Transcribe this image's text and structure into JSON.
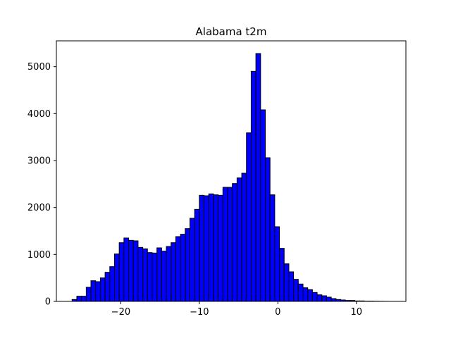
{
  "chart_data": {
    "type": "bar",
    "title": "Alabama t2m",
    "xlabel": "",
    "ylabel": "",
    "xlim": [
      -28.2,
      16.3
    ],
    "ylim": [
      0,
      5550
    ],
    "xticks": [
      -20,
      -10,
      0,
      10
    ],
    "xtick_labels": [
      "−20",
      "−10",
      "0",
      "10"
    ],
    "yticks": [
      0,
      1000,
      2000,
      3000,
      4000,
      5000
    ],
    "ytick_labels": [
      "0",
      "1000",
      "2000",
      "3000",
      "4000",
      "5000"
    ],
    "grid": false,
    "bar_color": "#0000ff",
    "edge_color": "#000000",
    "bin_width": 0.6,
    "bin_starts": [
      -26.2,
      -25.6,
      -25.0,
      -24.4,
      -23.8,
      -23.2,
      -22.6,
      -22.0,
      -21.4,
      -20.8,
      -20.2,
      -19.6,
      -19.0,
      -18.4,
      -17.8,
      -17.2,
      -16.6,
      -16.0,
      -15.4,
      -14.8,
      -14.2,
      -13.6,
      -13.0,
      -12.4,
      -11.8,
      -11.2,
      -10.6,
      -10.0,
      -9.4,
      -8.8,
      -8.2,
      -7.6,
      -7.0,
      -6.4,
      -5.8,
      -5.2,
      -4.6,
      -4.0,
      -3.4,
      -2.8,
      -2.2,
      -1.6,
      -1.0,
      -0.4,
      0.2,
      0.8,
      1.4,
      2.0,
      2.6,
      3.2,
      3.8,
      4.4,
      5.0,
      5.6,
      6.2,
      6.8,
      7.4,
      8.0,
      8.6,
      9.2,
      9.8,
      10.4,
      11.0,
      11.6,
      12.2,
      12.8,
      13.4
    ],
    "values": [
      40,
      110,
      110,
      300,
      440,
      420,
      500,
      620,
      740,
      1010,
      1250,
      1350,
      1300,
      1290,
      1150,
      1120,
      1040,
      1030,
      1140,
      1070,
      1170,
      1250,
      1380,
      1430,
      1550,
      1770,
      1960,
      2260,
      2250,
      2290,
      2270,
      2260,
      2430,
      2430,
      2510,
      2630,
      2730,
      3590,
      4900,
      5280,
      4080,
      3060,
      2270,
      1590,
      1130,
      800,
      630,
      470,
      370,
      290,
      250,
      190,
      140,
      120,
      90,
      60,
      40,
      30,
      20,
      20,
      10,
      10,
      5,
      5,
      3,
      2,
      1
    ]
  }
}
